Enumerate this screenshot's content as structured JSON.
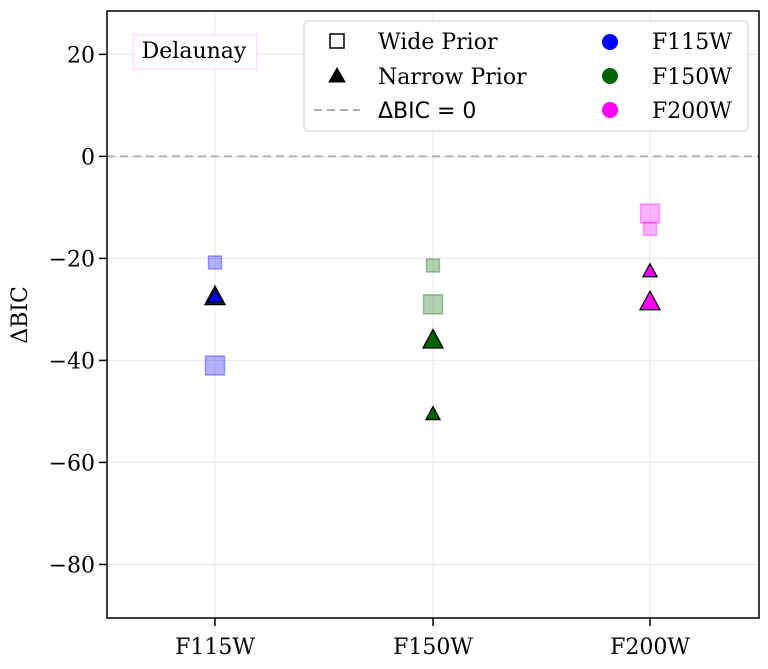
{
  "chart_data": {
    "type": "scatter",
    "ylabel": "ΔBIC",
    "xlabel": "",
    "categories": [
      "F115W",
      "F150W",
      "F200W"
    ],
    "ylim": [
      -90.5,
      28.5
    ],
    "yticks": [
      20,
      0,
      -20,
      -40,
      -60,
      -80
    ],
    "ytick_labels": [
      "20",
      "0",
      "−20",
      "−40",
      "−60",
      "−80"
    ],
    "grid": true,
    "reference_line": {
      "y": 0,
      "label": "ΔBIC = 0",
      "style": "dashed",
      "color": "#b0b0b0"
    },
    "annotation": {
      "text": "Delaunay",
      "position": "top-left",
      "border_color": "#ffccff"
    },
    "legend": {
      "position": "top-right",
      "markers": [
        {
          "label": "Wide Prior",
          "shape": "square",
          "filled": false
        },
        {
          "label": "Narrow Prior",
          "shape": "triangle",
          "filled": true
        }
      ],
      "line": {
        "label": "ΔBIC = 0",
        "style": "dashed"
      },
      "colors": [
        {
          "label": "F115W",
          "color": "#0000ff"
        },
        {
          "label": "F150W",
          "color": "#006400"
        },
        {
          "label": "F200W",
          "color": "#ff00ff"
        }
      ]
    },
    "series": [
      {
        "name": "F115W",
        "color": "#0000ff",
        "points": [
          {
            "category": "F115W",
            "prior": "wide",
            "y": -20.8,
            "size": "small"
          },
          {
            "category": "F115W",
            "prior": "wide",
            "y": -41.0,
            "size": "large"
          },
          {
            "category": "F115W",
            "prior": "narrow",
            "y": -27.5,
            "size": "large"
          },
          {
            "category": "F115W",
            "prior": "narrow",
            "y": -27.5,
            "size": "small"
          }
        ]
      },
      {
        "name": "F150W",
        "color": "#006400",
        "points": [
          {
            "category": "F150W",
            "prior": "wide",
            "y": -21.4,
            "size": "small"
          },
          {
            "category": "F150W",
            "prior": "wide",
            "y": -29.0,
            "size": "large"
          },
          {
            "category": "F150W",
            "prior": "narrow",
            "y": -36.0,
            "size": "large"
          },
          {
            "category": "F150W",
            "prior": "narrow",
            "y": -50.5,
            "size": "small"
          }
        ]
      },
      {
        "name": "F200W",
        "color": "#ff00ff",
        "points": [
          {
            "category": "F200W",
            "prior": "wide",
            "y": -11.2,
            "size": "large"
          },
          {
            "category": "F200W",
            "prior": "wide",
            "y": -14.2,
            "size": "small"
          },
          {
            "category": "F200W",
            "prior": "narrow",
            "y": -22.5,
            "size": "small"
          },
          {
            "category": "F200W",
            "prior": "narrow",
            "y": -28.5,
            "size": "large"
          }
        ]
      }
    ]
  }
}
